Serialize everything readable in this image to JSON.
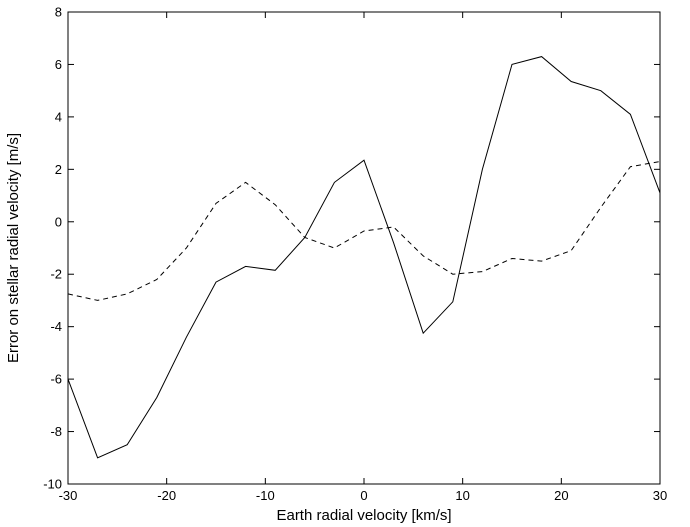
{
  "chart_data": {
    "type": "line",
    "title": "",
    "xlabel": "Earth radial velocity [km/s]",
    "ylabel": "Error on stellar radial velocity [m/s]",
    "xlim": [
      -30,
      30
    ],
    "ylim": [
      -10,
      8
    ],
    "xticks": [
      -30,
      -20,
      -10,
      0,
      10,
      20,
      30
    ],
    "yticks": [
      -10,
      -8,
      -6,
      -4,
      -2,
      0,
      2,
      4,
      6,
      8
    ],
    "grid": false,
    "legend": "none",
    "series": [
      {
        "style": "solid",
        "color": "#000000",
        "x": [
          -30,
          -27,
          -24,
          -21,
          -18,
          -15,
          -12,
          -9,
          -6,
          -3,
          0,
          3,
          6,
          9,
          12,
          15,
          18,
          21,
          24,
          27,
          30
        ],
        "y": [
          -6.0,
          -9.0,
          -8.5,
          -6.7,
          -4.4,
          -2.3,
          -1.7,
          -1.85,
          -0.6,
          1.5,
          2.35,
          -0.8,
          -4.25,
          -3.05,
          2.0,
          6.0,
          6.3,
          5.35,
          5.0,
          4.1,
          1.1
        ]
      },
      {
        "style": "dashed",
        "color": "#000000",
        "x": [
          -30,
          -27,
          -24,
          -21,
          -18,
          -15,
          -12,
          -9,
          -6,
          -3,
          0,
          3,
          6,
          9,
          12,
          15,
          18,
          21,
          24,
          27,
          30
        ],
        "y": [
          -2.75,
          -3.0,
          -2.75,
          -2.2,
          -1.0,
          0.7,
          1.5,
          0.65,
          -0.6,
          -1.0,
          -0.35,
          -0.2,
          -1.3,
          -2.0,
          -1.9,
          -1.4,
          -1.5,
          -1.1,
          0.55,
          2.1,
          2.3
        ]
      }
    ]
  }
}
